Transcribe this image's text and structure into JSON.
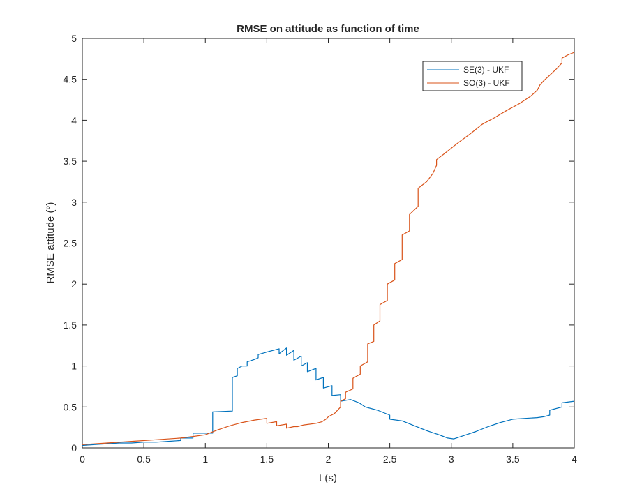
{
  "chart_data": {
    "type": "line",
    "title": "RMSE on attitude as function of time",
    "xlabel": "t (s)",
    "ylabel": "RMSE attitude (°)",
    "xlim": [
      0,
      4
    ],
    "ylim": [
      0,
      5
    ],
    "xticks": [
      "0",
      "0.5",
      "1",
      "1.5",
      "2",
      "2.5",
      "3",
      "3.5",
      "4"
    ],
    "yticks": [
      "0",
      "0.5",
      "1",
      "1.5",
      "2",
      "2.5",
      "3",
      "3.5",
      "4",
      "4.5",
      "5"
    ],
    "grid": false,
    "legend_position": "top-right",
    "series": [
      {
        "name": "SE(3) - UKF",
        "color": "#0072BD",
        "points": [
          [
            0,
            0.03
          ],
          [
            0.1,
            0.04
          ],
          [
            0.2,
            0.05
          ],
          [
            0.3,
            0.06
          ],
          [
            0.4,
            0.06
          ],
          [
            0.5,
            0.07
          ],
          [
            0.6,
            0.07
          ],
          [
            0.7,
            0.08
          ],
          [
            0.8,
            0.09
          ],
          [
            0.8,
            0.12
          ],
          [
            0.9,
            0.12
          ],
          [
            0.9,
            0.18
          ],
          [
            1.0,
            0.18
          ],
          [
            1.06,
            0.18
          ],
          [
            1.06,
            0.44
          ],
          [
            1.22,
            0.45
          ],
          [
            1.22,
            0.86
          ],
          [
            1.26,
            0.88
          ],
          [
            1.26,
            0.97
          ],
          [
            1.3,
            1.0
          ],
          [
            1.34,
            1.0
          ],
          [
            1.34,
            1.05
          ],
          [
            1.4,
            1.08
          ],
          [
            1.43,
            1.1
          ],
          [
            1.43,
            1.14
          ],
          [
            1.5,
            1.17
          ],
          [
            1.6,
            1.21
          ],
          [
            1.6,
            1.15
          ],
          [
            1.66,
            1.22
          ],
          [
            1.66,
            1.13
          ],
          [
            1.72,
            1.19
          ],
          [
            1.72,
            1.07
          ],
          [
            1.78,
            1.12
          ],
          [
            1.78,
            1.0
          ],
          [
            1.83,
            1.04
          ],
          [
            1.83,
            0.93
          ],
          [
            1.9,
            0.97
          ],
          [
            1.9,
            0.83
          ],
          [
            1.96,
            0.86
          ],
          [
            1.96,
            0.73
          ],
          [
            2.03,
            0.76
          ],
          [
            2.03,
            0.64
          ],
          [
            2.1,
            0.65
          ],
          [
            2.1,
            0.57
          ],
          [
            2.18,
            0.59
          ],
          [
            2.25,
            0.55
          ],
          [
            2.3,
            0.5
          ],
          [
            2.4,
            0.46
          ],
          [
            2.5,
            0.4
          ],
          [
            2.5,
            0.35
          ],
          [
            2.6,
            0.33
          ],
          [
            2.7,
            0.27
          ],
          [
            2.8,
            0.21
          ],
          [
            2.9,
            0.16
          ],
          [
            2.97,
            0.12
          ],
          [
            3.02,
            0.11
          ],
          [
            3.1,
            0.15
          ],
          [
            3.2,
            0.2
          ],
          [
            3.3,
            0.26
          ],
          [
            3.4,
            0.31
          ],
          [
            3.5,
            0.35
          ],
          [
            3.6,
            0.36
          ],
          [
            3.7,
            0.37
          ],
          [
            3.75,
            0.38
          ],
          [
            3.8,
            0.4
          ],
          [
            3.8,
            0.46
          ],
          [
            3.9,
            0.5
          ],
          [
            3.9,
            0.55
          ],
          [
            4.0,
            0.57
          ]
        ]
      },
      {
        "name": "SO(3) - UKF",
        "color": "#D95319",
        "points": [
          [
            0,
            0.04
          ],
          [
            0.2,
            0.06
          ],
          [
            0.4,
            0.08
          ],
          [
            0.6,
            0.1
          ],
          [
            0.8,
            0.12
          ],
          [
            0.9,
            0.14
          ],
          [
            1.0,
            0.16
          ],
          [
            1.1,
            0.22
          ],
          [
            1.2,
            0.27
          ],
          [
            1.3,
            0.31
          ],
          [
            1.4,
            0.34
          ],
          [
            1.5,
            0.36
          ],
          [
            1.5,
            0.3
          ],
          [
            1.58,
            0.32
          ],
          [
            1.58,
            0.27
          ],
          [
            1.66,
            0.29
          ],
          [
            1.66,
            0.24
          ],
          [
            1.72,
            0.26
          ],
          [
            1.75,
            0.26
          ],
          [
            1.8,
            0.28
          ],
          [
            1.9,
            0.3
          ],
          [
            1.95,
            0.32
          ],
          [
            1.98,
            0.35
          ],
          [
            2.0,
            0.38
          ],
          [
            2.05,
            0.42
          ],
          [
            2.1,
            0.5
          ],
          [
            2.1,
            0.57
          ],
          [
            2.14,
            0.6
          ],
          [
            2.14,
            0.68
          ],
          [
            2.2,
            0.72
          ],
          [
            2.2,
            0.85
          ],
          [
            2.26,
            0.9
          ],
          [
            2.26,
            1.0
          ],
          [
            2.32,
            1.05
          ],
          [
            2.32,
            1.27
          ],
          [
            2.37,
            1.3
          ],
          [
            2.37,
            1.5
          ],
          [
            2.42,
            1.55
          ],
          [
            2.42,
            1.75
          ],
          [
            2.48,
            1.8
          ],
          [
            2.48,
            2.0
          ],
          [
            2.54,
            2.05
          ],
          [
            2.54,
            2.25
          ],
          [
            2.6,
            2.3
          ],
          [
            2.6,
            2.6
          ],
          [
            2.66,
            2.65
          ],
          [
            2.66,
            2.85
          ],
          [
            2.73,
            2.95
          ],
          [
            2.73,
            3.17
          ],
          [
            2.8,
            3.25
          ],
          [
            2.85,
            3.35
          ],
          [
            2.88,
            3.45
          ],
          [
            2.88,
            3.52
          ],
          [
            2.95,
            3.6
          ],
          [
            3.05,
            3.72
          ],
          [
            3.15,
            3.83
          ],
          [
            3.25,
            3.95
          ],
          [
            3.35,
            4.03
          ],
          [
            3.45,
            4.12
          ],
          [
            3.55,
            4.2
          ],
          [
            3.6,
            4.25
          ],
          [
            3.65,
            4.3
          ],
          [
            3.7,
            4.37
          ],
          [
            3.72,
            4.43
          ],
          [
            3.75,
            4.48
          ],
          [
            3.8,
            4.55
          ],
          [
            3.85,
            4.62
          ],
          [
            3.9,
            4.7
          ],
          [
            3.9,
            4.76
          ],
          [
            3.95,
            4.8
          ],
          [
            4.0,
            4.83
          ]
        ]
      }
    ]
  }
}
